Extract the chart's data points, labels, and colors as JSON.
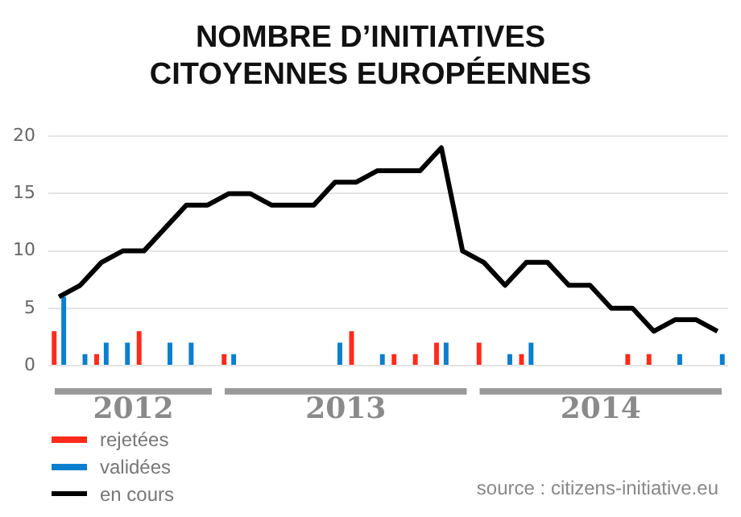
{
  "chart_data": {
    "type": "bar",
    "title": "NOMBRE D’INITIATIVES CITOYENNES EUROPÉENNES",
    "categories": [
      null,
      null,
      null,
      null,
      null,
      null,
      null,
      null,
      null,
      null,
      null,
      null,
      null,
      null,
      null,
      null,
      null,
      null,
      null,
      null,
      null,
      null,
      null,
      null,
      null,
      null,
      null,
      null,
      null,
      null,
      null,
      null
    ],
    "series": [
      {
        "name": "rejetées",
        "color": "#ff2a1a",
        "values": [
          3,
          null,
          1,
          null,
          3,
          null,
          null,
          null,
          1,
          null,
          null,
          null,
          null,
          null,
          3,
          null,
          1,
          1,
          2,
          null,
          2,
          null,
          1,
          null,
          null,
          null,
          null,
          1,
          1,
          null,
          null,
          null
        ]
      },
      {
        "name": "validées",
        "color": "#0a7fd0",
        "values": [
          6,
          1,
          2,
          2,
          null,
          2,
          2,
          null,
          1,
          null,
          null,
          null,
          null,
          2,
          null,
          1,
          null,
          null,
          2,
          null,
          null,
          1,
          2,
          null,
          null,
          null,
          null,
          null,
          null,
          1,
          null,
          1
        ]
      },
      {
        "name": "en cours",
        "type": "line",
        "color": "#000000",
        "values": [
          6,
          7,
          9,
          10,
          10,
          12,
          14,
          14,
          15,
          15,
          14,
          14,
          14,
          16,
          16,
          17,
          17,
          17,
          19,
          10,
          9,
          7,
          9,
          9,
          7,
          7,
          5,
          5,
          3,
          4,
          4,
          3
        ]
      }
    ],
    "ylim": [
      0,
      20
    ],
    "yticks": [
      0,
      5,
      10,
      15,
      20
    ],
    "grid": "y",
    "legend": "bottom left",
    "marker": "none",
    "annotations": [
      "2012",
      "2013",
      "2014",
      "source : citizens-initiative.eu"
    ]
  }
}
